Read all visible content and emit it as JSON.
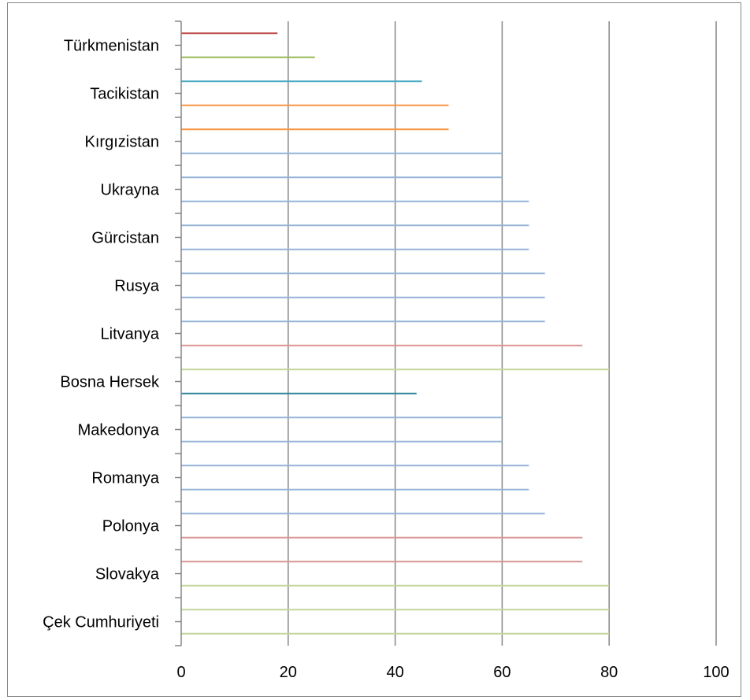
{
  "chart_data": {
    "type": "bar",
    "orientation": "horizontal",
    "x_ticks": [
      0,
      20,
      40,
      60,
      80,
      100
    ],
    "xlim": [
      0,
      100
    ],
    "grid": "vertical-major",
    "category_labels": [
      "Türkmenistan",
      "Tacikistan",
      "Kırgızistan",
      "Ukrayna",
      "Gürcistan",
      "Rusya",
      "Litvanya",
      "Bosna Hersek",
      "Makedonya",
      "Romanya",
      "Polonya",
      "Slovakya",
      "Çek Cumhuriyeti"
    ],
    "bars_top_to_bottom": [
      {
        "value": 18,
        "color": "#be4b48"
      },
      {
        "value": 25,
        "color": "#98b954"
      },
      {
        "value": 45,
        "color": "#4bacc6"
      },
      {
        "value": 50,
        "color": "#f79646"
      },
      {
        "value": 50,
        "color": "#f79646"
      },
      {
        "value": 60,
        "color": "#95b3d7"
      },
      {
        "value": 60,
        "color": "#95b3d7"
      },
      {
        "value": 65,
        "color": "#95b3d7"
      },
      {
        "value": 65,
        "color": "#95b3d7"
      },
      {
        "value": 65,
        "color": "#95b3d7"
      },
      {
        "value": 68,
        "color": "#95b3d7"
      },
      {
        "value": 68,
        "color": "#95b3d7"
      },
      {
        "value": 68,
        "color": "#95b3d7"
      },
      {
        "value": 75,
        "color": "#da9694"
      },
      {
        "value": 80,
        "color": "#c3d69b"
      },
      {
        "value": 44,
        "color": "#31859c"
      },
      {
        "value": 60,
        "color": "#95b3d7"
      },
      {
        "value": 60,
        "color": "#95b3d7"
      },
      {
        "value": 65,
        "color": "#95b3d7"
      },
      {
        "value": 65,
        "color": "#95b3d7"
      },
      {
        "value": 68,
        "color": "#95b3d7"
      },
      {
        "value": 75,
        "color": "#da9694"
      },
      {
        "value": 75,
        "color": "#da9694"
      },
      {
        "value": 80,
        "color": "#c3d69b"
      },
      {
        "value": 80,
        "color": "#c3d69b"
      },
      {
        "value": 80,
        "color": "#c3d69b"
      }
    ]
  }
}
